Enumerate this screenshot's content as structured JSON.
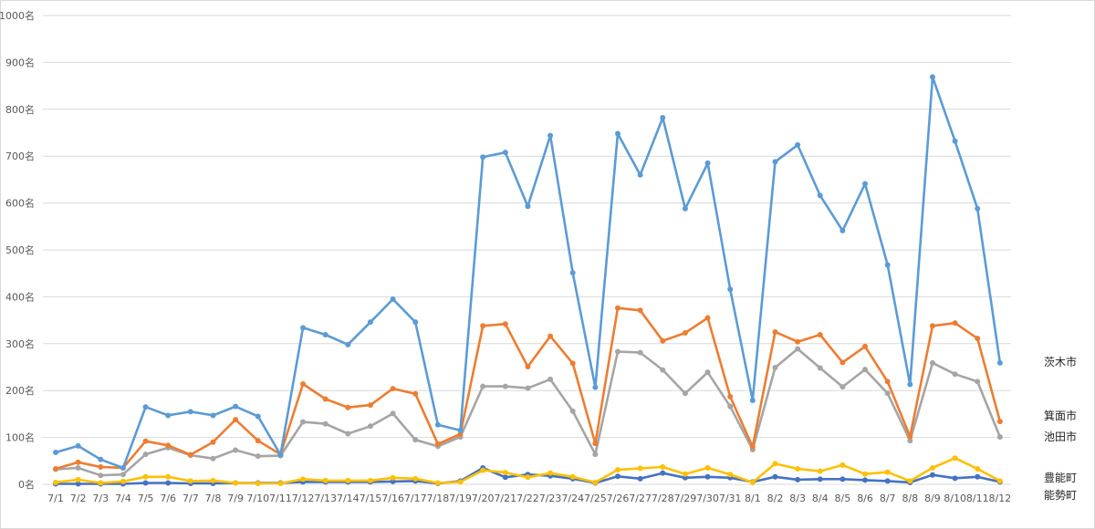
{
  "chart_data": {
    "type": "line",
    "title": "",
    "xlabel": "",
    "ylabel": "",
    "ylim": [
      0,
      1000
    ],
    "y_ticks": [
      "0名",
      "100名",
      "200名",
      "300名",
      "400名",
      "500名",
      "600名",
      "700名",
      "800名",
      "900名",
      "1000名"
    ],
    "grid": true,
    "legend": "right, labels at line ends",
    "categories": [
      "7/1",
      "7/2",
      "7/3",
      "7/4",
      "7/5",
      "7/6",
      "7/7",
      "7/8",
      "7/9",
      "7/10",
      "7/11",
      "7/12",
      "7/13",
      "7/14",
      "7/15",
      "7/16",
      "7/17",
      "7/18",
      "7/19",
      "7/20",
      "7/21",
      "7/22",
      "7/23",
      "7/24",
      "7/25",
      "7/26",
      "7/27",
      "7/28",
      "7/29",
      "7/30",
      "7/31",
      "8/1",
      "8/2",
      "8/3",
      "8/4",
      "8/5",
      "8/6",
      "8/7",
      "8/8",
      "8/9",
      "8/10",
      "8/11",
      "8/12"
    ],
    "series": [
      {
        "name": "茨木市",
        "color": "#5b9bd5",
        "values": [
          68,
          82,
          53,
          35,
          165,
          147,
          155,
          147,
          166,
          145,
          63,
          334,
          319,
          298,
          346,
          395,
          346,
          127,
          115,
          698,
          708,
          593,
          744,
          451,
          207,
          748,
          660,
          782,
          588,
          685,
          416,
          179,
          688,
          724,
          616,
          541,
          641,
          468,
          213,
          869,
          732,
          588,
          259
        ]
      },
      {
        "name": "箕面市",
        "color": "#ed7d31",
        "values": [
          33,
          47,
          37,
          35,
          92,
          83,
          63,
          90,
          138,
          93,
          64,
          214,
          182,
          164,
          169,
          204,
          193,
          86,
          107,
          338,
          342,
          251,
          316,
          258,
          87,
          376,
          371,
          306,
          323,
          355,
          187,
          80,
          325,
          304,
          319,
          260,
          294,
          219,
          102,
          338,
          344,
          311,
          134
        ]
      },
      {
        "name": "池田市",
        "color": "#a5a5a5",
        "values": [
          32,
          35,
          19,
          21,
          64,
          78,
          62,
          55,
          73,
          60,
          61,
          133,
          129,
          108,
          124,
          151,
          95,
          81,
          101,
          209,
          209,
          205,
          224,
          156,
          64,
          283,
          281,
          244,
          194,
          239,
          166,
          74,
          249,
          289,
          248,
          208,
          245,
          194,
          93,
          259,
          235,
          219,
          101
        ]
      },
      {
        "name": "豊能町",
        "color": "#ffc000",
        "values": [
          4,
          10,
          3,
          6,
          16,
          16,
          7,
          8,
          3,
          2,
          2,
          11,
          8,
          8,
          8,
          14,
          12,
          3,
          5,
          30,
          25,
          15,
          24,
          16,
          4,
          31,
          34,
          37,
          22,
          35,
          21,
          4,
          44,
          33,
          28,
          41,
          22,
          26,
          7,
          35,
          56,
          33,
          7
        ]
      },
      {
        "name": "能勢町",
        "color": "#4472c4",
        "values": [
          1,
          1,
          1,
          1,
          3,
          3,
          2,
          2,
          3,
          3,
          3,
          5,
          5,
          5,
          5,
          6,
          7,
          2,
          7,
          35,
          15,
          21,
          18,
          12,
          3,
          17,
          12,
          24,
          14,
          16,
          14,
          5,
          16,
          10,
          11,
          11,
          9,
          7,
          4,
          20,
          13,
          16,
          5
        ]
      }
    ]
  }
}
